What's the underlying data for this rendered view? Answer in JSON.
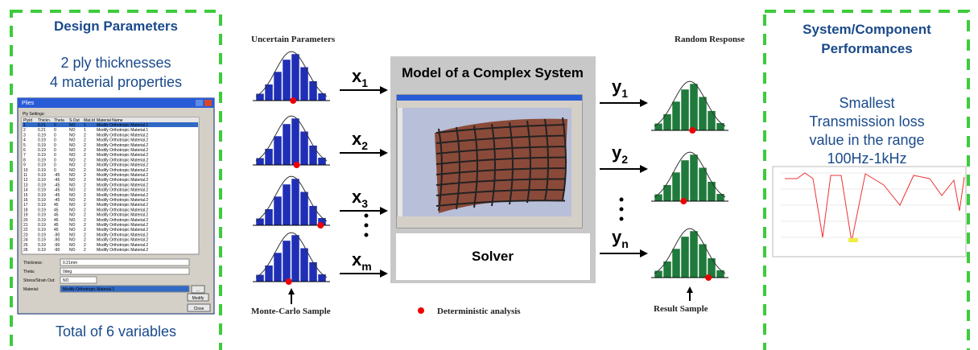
{
  "design_panel": {
    "title": "Design Parameters",
    "line1": "2 ply thicknesses",
    "line2": "4 material properties",
    "footer": "Total of 6 variables"
  },
  "dialog": {
    "title": "Plies",
    "section": "Ply Settings:",
    "columns": [
      "PlyId",
      "Thickn.",
      "Theta",
      "S.Out",
      "Mat.Id",
      "Material Name"
    ],
    "rows": [
      [
        "1",
        "0.21",
        "0",
        "NO",
        "1",
        "Modify Orthotropic Material.1"
      ],
      [
        "2",
        "0.21",
        "0",
        "NO",
        "1",
        "Modify Orthotropic Material.1"
      ],
      [
        "3",
        "0.19",
        "0",
        "NO",
        "2",
        "Modify Orthotropic Material.2"
      ],
      [
        "4",
        "0.19",
        "0",
        "NO",
        "2",
        "Modify Orthotropic Material.2"
      ],
      [
        "5",
        "0.19",
        "0",
        "NO",
        "2",
        "Modify Orthotropic Material.2"
      ],
      [
        "6",
        "0.19",
        "0",
        "NO",
        "2",
        "Modify Orthotropic Material.2"
      ],
      [
        "7",
        "0.19",
        "0",
        "NO",
        "2",
        "Modify Orthotropic Material.2"
      ],
      [
        "8",
        "0.19",
        "0",
        "NO",
        "2",
        "Modify Orthotropic Material.2"
      ],
      [
        "9",
        "0.19",
        "0",
        "NO",
        "2",
        "Modify Orthotropic Material.2"
      ],
      [
        "10",
        "0.19",
        "0",
        "NO",
        "2",
        "Modify Orthotropic Material.2"
      ],
      [
        "11",
        "0.19",
        "-45",
        "NO",
        "2",
        "Modify Orthotropic Material.2"
      ],
      [
        "12",
        "0.19",
        "-45",
        "NO",
        "2",
        "Modify Orthotropic Material.2"
      ],
      [
        "13",
        "0.19",
        "-45",
        "NO",
        "2",
        "Modify Orthotropic Material.2"
      ],
      [
        "14",
        "0.19",
        "-45",
        "NO",
        "2",
        "Modify Orthotropic Material.2"
      ],
      [
        "15",
        "0.19",
        "-45",
        "NO",
        "2",
        "Modify Orthotropic Material.2"
      ],
      [
        "16",
        "0.19",
        "-45",
        "NO",
        "2",
        "Modify Orthotropic Material.2"
      ],
      [
        "17",
        "0.19",
        "45",
        "NO",
        "2",
        "Modify Orthotropic Material.2"
      ],
      [
        "18",
        "0.19",
        "45",
        "NO",
        "2",
        "Modify Orthotropic Material.2"
      ],
      [
        "19",
        "0.19",
        "45",
        "NO",
        "2",
        "Modify Orthotropic Material.2"
      ],
      [
        "20",
        "0.19",
        "45",
        "NO",
        "2",
        "Modify Orthotropic Material.2"
      ],
      [
        "21",
        "0.19",
        "45",
        "NO",
        "2",
        "Modify Orthotropic Material.2"
      ],
      [
        "22",
        "0.19",
        "45",
        "NO",
        "2",
        "Modify Orthotropic Material.2"
      ],
      [
        "23",
        "0.19",
        "-90",
        "NO",
        "2",
        "Modify Orthotropic Material.2"
      ],
      [
        "24",
        "0.19",
        "-90",
        "NO",
        "2",
        "Modify Orthotropic Material.2"
      ],
      [
        "25",
        "0.19",
        "-90",
        "NO",
        "2",
        "Modify Orthotropic Material.2"
      ],
      [
        "26",
        "0.19",
        "-90",
        "NO",
        "2",
        "Modify Orthotropic Material.2"
      ]
    ],
    "fields": [
      {
        "label": "Thickness:",
        "value": "0.21mm"
      },
      {
        "label": "Theta:",
        "value": "0deg"
      },
      {
        "label": "Stress/Strain Out:",
        "value": "NO"
      },
      {
        "label": "Material:",
        "value": "Modify Orthotropic Material.1"
      }
    ],
    "buttons": [
      "...",
      "Modify",
      "Close"
    ]
  },
  "flow": {
    "inputs_title": "Uncertain Parameters",
    "outputs_title": "Random Response",
    "inputs": [
      {
        "name": "x",
        "sub": "1"
      },
      {
        "name": "x",
        "sub": "2"
      },
      {
        "name": "x",
        "sub": "3"
      },
      {
        "name": "x",
        "sub": "m"
      }
    ],
    "outputs": [
      {
        "name": "y",
        "sub": "1"
      },
      {
        "name": "y",
        "sub": "2"
      },
      {
        "name": "y",
        "sub": "n"
      }
    ],
    "model_title": "Model of a Complex System",
    "solver": "Solver",
    "mc_sample": "Monte-Carlo Sample",
    "legend": "Deterministic analysis",
    "result_sample": "Result Sample"
  },
  "performance_panel": {
    "title_line1": "System/Component",
    "title_line2": "Performances",
    "line1": "Smallest",
    "line2": "Transmission loss",
    "line3": "value in the range",
    "line4": "100Hz-1kHz"
  }
}
